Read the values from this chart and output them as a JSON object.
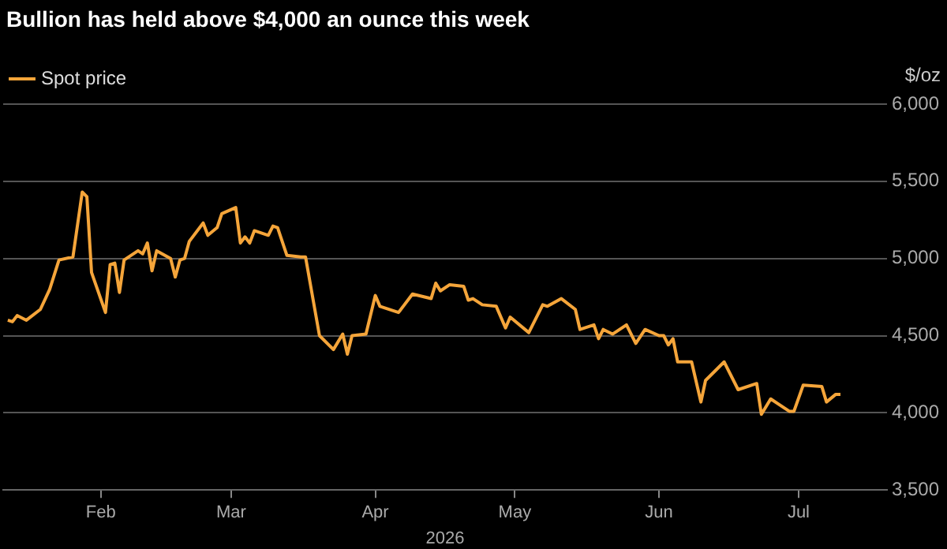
{
  "chart_data": {
    "type": "line",
    "title": "Bullion has held above $4,000 an ounce this week",
    "xlabel": "2026",
    "ylabel": "$/oz",
    "x": [
      "2026-01-12",
      "2026-01-13",
      "2026-01-14",
      "2026-01-16",
      "2026-01-19",
      "2026-01-21",
      "2026-01-23",
      "2026-01-26",
      "2026-01-28",
      "2026-01-29",
      "2026-01-30",
      "2026-02-02",
      "2026-02-03",
      "2026-02-04",
      "2026-02-05",
      "2026-02-06",
      "2026-02-09",
      "2026-02-10",
      "2026-02-11",
      "2026-02-12",
      "2026-02-13",
      "2026-02-16",
      "2026-02-17",
      "2026-02-18",
      "2026-02-19",
      "2026-02-20",
      "2026-02-23",
      "2026-02-24",
      "2026-02-26",
      "2026-02-27",
      "2026-03-02",
      "2026-03-03",
      "2026-03-04",
      "2026-03-05",
      "2026-03-06",
      "2026-03-09",
      "2026-03-10",
      "2026-03-11",
      "2026-03-13",
      "2026-03-16",
      "2026-03-17",
      "2026-03-20",
      "2026-03-23",
      "2026-03-25",
      "2026-03-26",
      "2026-03-27",
      "2026-03-30",
      "2026-04-01",
      "2026-04-02",
      "2026-04-06",
      "2026-04-09",
      "2026-04-13",
      "2026-04-14",
      "2026-04-15",
      "2026-04-17",
      "2026-04-20",
      "2026-04-21",
      "2026-04-22",
      "2026-04-24",
      "2026-04-27",
      "2026-04-29",
      "2026-04-30",
      "2026-05-04",
      "2026-05-07",
      "2026-05-08",
      "2026-05-11",
      "2026-05-14",
      "2026-05-15",
      "2026-05-18",
      "2026-05-19",
      "2026-05-20",
      "2026-05-22",
      "2026-05-25",
      "2026-05-27",
      "2026-05-29",
      "2026-06-01",
      "2026-06-02",
      "2026-06-03",
      "2026-06-04",
      "2026-06-05",
      "2026-06-08",
      "2026-06-10",
      "2026-06-11",
      "2026-06-15",
      "2026-06-18",
      "2026-06-22",
      "2026-06-23",
      "2026-06-25",
      "2026-06-29",
      "2026-06-30",
      "2026-07-02",
      "2026-07-06",
      "2026-07-07",
      "2026-07-09",
      "2026-07-10"
    ],
    "series": [
      {
        "name": "Spot price",
        "color": "#f5a53a",
        "values": [
          4600,
          4590,
          4630,
          4600,
          4670,
          4800,
          4990,
          5010,
          5430,
          5400,
          4910,
          4650,
          4960,
          4970,
          4780,
          4990,
          5050,
          5030,
          5100,
          4920,
          5050,
          5000,
          4880,
          4990,
          5000,
          5110,
          5230,
          5150,
          5200,
          5290,
          5330,
          5100,
          5140,
          5100,
          5180,
          5150,
          5210,
          5200,
          5020,
          5010,
          5010,
          4500,
          4410,
          4510,
          4380,
          4500,
          4510,
          4760,
          4690,
          4650,
          4770,
          4740,
          4840,
          4790,
          4830,
          4820,
          4730,
          4740,
          4700,
          4690,
          4550,
          4620,
          4520,
          4700,
          4690,
          4740,
          4670,
          4540,
          4570,
          4480,
          4540,
          4510,
          4570,
          4450,
          4540,
          4500,
          4500,
          4440,
          4480,
          4330,
          4330,
          4070,
          4210,
          4330,
          4150,
          4190,
          3990,
          4090,
          4010,
          4010,
          4180,
          4170,
          4070,
          4120,
          4120
        ]
      }
    ],
    "xlim": [
      "2026-01-11",
      "2026-07-20"
    ],
    "xticks": [
      {
        "value": "2026-02-01",
        "label": "Feb"
      },
      {
        "value": "2026-03-01",
        "label": "Mar"
      },
      {
        "value": "2026-04-01",
        "label": "Apr"
      },
      {
        "value": "2026-05-01",
        "label": "May"
      },
      {
        "value": "2026-06-01",
        "label": "Jun"
      },
      {
        "value": "2026-07-01",
        "label": "Jul"
      }
    ],
    "ylim": [
      3500,
      6000
    ],
    "yticks": [
      {
        "value": 3500,
        "label": "3,500"
      },
      {
        "value": 4000,
        "label": "4,000"
      },
      {
        "value": 4500,
        "label": "4,500"
      },
      {
        "value": 5000,
        "label": "5,000"
      },
      {
        "value": 5500,
        "label": "5,500"
      },
      {
        "value": 6000,
        "label": "6,000"
      }
    ],
    "grid": "y",
    "legend": "top left",
    "marker": "none",
    "line_style": "solid"
  }
}
